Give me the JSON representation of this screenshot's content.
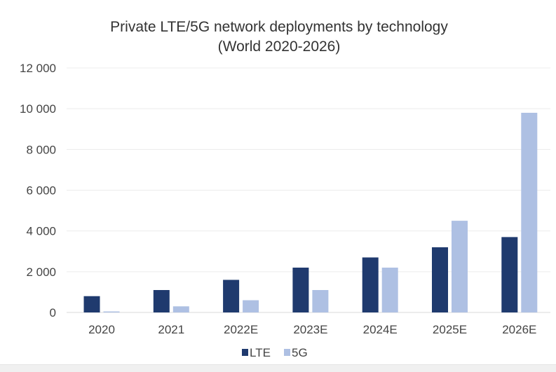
{
  "chart_data": {
    "type": "bar",
    "title": "Private LTE/5G network deployments by technology",
    "subtitle": "(World 2020-2026)",
    "xlabel": "",
    "ylabel": "",
    "categories": [
      "2020",
      "2021",
      "2022E",
      "2023E",
      "2024E",
      "2025E",
      "2026E"
    ],
    "series": [
      {
        "name": "LTE",
        "color": "#1f3a6e",
        "values": [
          800,
          1100,
          1600,
          2200,
          2700,
          3200,
          3700
        ]
      },
      {
        "name": "5G",
        "color": "#aec0e3",
        "values": [
          50,
          300,
          600,
          1100,
          2200,
          4500,
          9800
        ]
      }
    ],
    "ylim": [
      0,
      12000
    ],
    "yticks": [
      0,
      2000,
      4000,
      6000,
      8000,
      10000,
      12000
    ],
    "ytick_labels": [
      "0",
      "2 000",
      "4 000",
      "6 000",
      "8 000",
      "10 000",
      "12 000"
    ],
    "grid": true,
    "legend_position": "bottom"
  }
}
